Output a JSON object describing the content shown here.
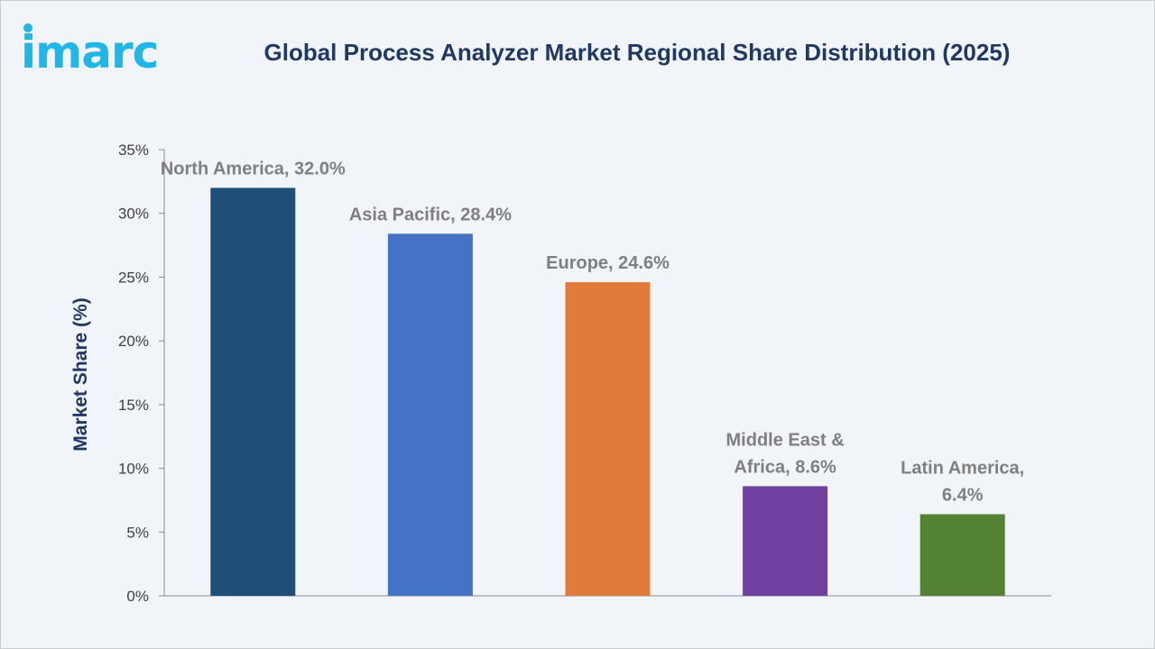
{
  "brand": {
    "logo_text": "imarc",
    "logo_color": "#1fb6e8"
  },
  "chart_data": {
    "type": "bar",
    "title": "Global Process Analyzer Market Regional Share Distribution (2025)",
    "xlabel": "",
    "ylabel": "Market Share (%)",
    "ylim": [
      0,
      35
    ],
    "yticks": [
      0,
      5,
      10,
      15,
      20,
      25,
      30,
      35
    ],
    "ytick_labels": [
      "0%",
      "5%",
      "10%",
      "15%",
      "20%",
      "25%",
      "30%",
      "35%"
    ],
    "grid": false,
    "legend": "none",
    "categories": [
      "North America",
      "Asia Pacific",
      "Europe",
      "Middle East & Africa",
      "Latin America"
    ],
    "values": [
      32.0,
      28.4,
      24.6,
      8.6,
      6.4
    ],
    "colors": [
      "#1f4e79",
      "#4472c4",
      "#e07b39",
      "#7040a0",
      "#548235"
    ],
    "data_labels": [
      [
        "North America, 32.0%"
      ],
      [
        "Asia Pacific, 28.4%"
      ],
      [
        "Europe, 24.6%"
      ],
      [
        "Middle East &",
        "Africa, 8.6%"
      ],
      [
        "Latin America,",
        "6.4%"
      ]
    ]
  }
}
